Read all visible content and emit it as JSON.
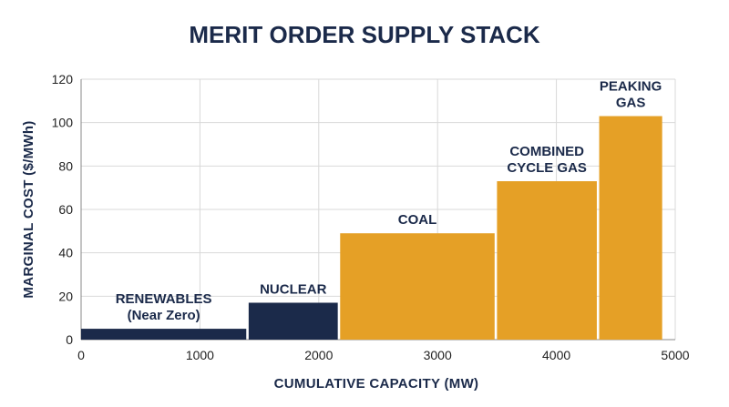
{
  "chart_data": {
    "type": "bar",
    "title": "MERIT ORDER SUPPLY STACK",
    "xlabel": "CUMULATIVE CAPACITY (MW)",
    "ylabel": "MARGINAL COST ($/MWh)",
    "xlim": [
      0,
      5000
    ],
    "ylim": [
      0,
      120
    ],
    "xticks": [
      0,
      1000,
      2000,
      3000,
      4000,
      5000
    ],
    "yticks": [
      0,
      20,
      40,
      60,
      80,
      100,
      120
    ],
    "grid": true,
    "colors": {
      "dark": "#1b2a4a",
      "amber": "#e5a026",
      "text": "#1b2a4a"
    },
    "segments": [
      {
        "label": [
          "RENEWABLES",
          "(Near Zero)"
        ],
        "x_start": 0,
        "x_end": 1390,
        "value": 5,
        "color": "dark"
      },
      {
        "label": [
          "NUCLEAR"
        ],
        "x_start": 1410,
        "x_end": 2160,
        "value": 17,
        "color": "dark"
      },
      {
        "label": [
          "COAL"
        ],
        "x_start": 2180,
        "x_end": 3480,
        "value": 49,
        "color": "amber"
      },
      {
        "label": [
          "COMBINED",
          "CYCLE GAS"
        ],
        "x_start": 3500,
        "x_end": 4340,
        "value": 73,
        "color": "amber"
      },
      {
        "label": [
          "PEAKING",
          "GAS"
        ],
        "x_start": 4360,
        "x_end": 4890,
        "value": 103,
        "color": "amber"
      }
    ]
  }
}
